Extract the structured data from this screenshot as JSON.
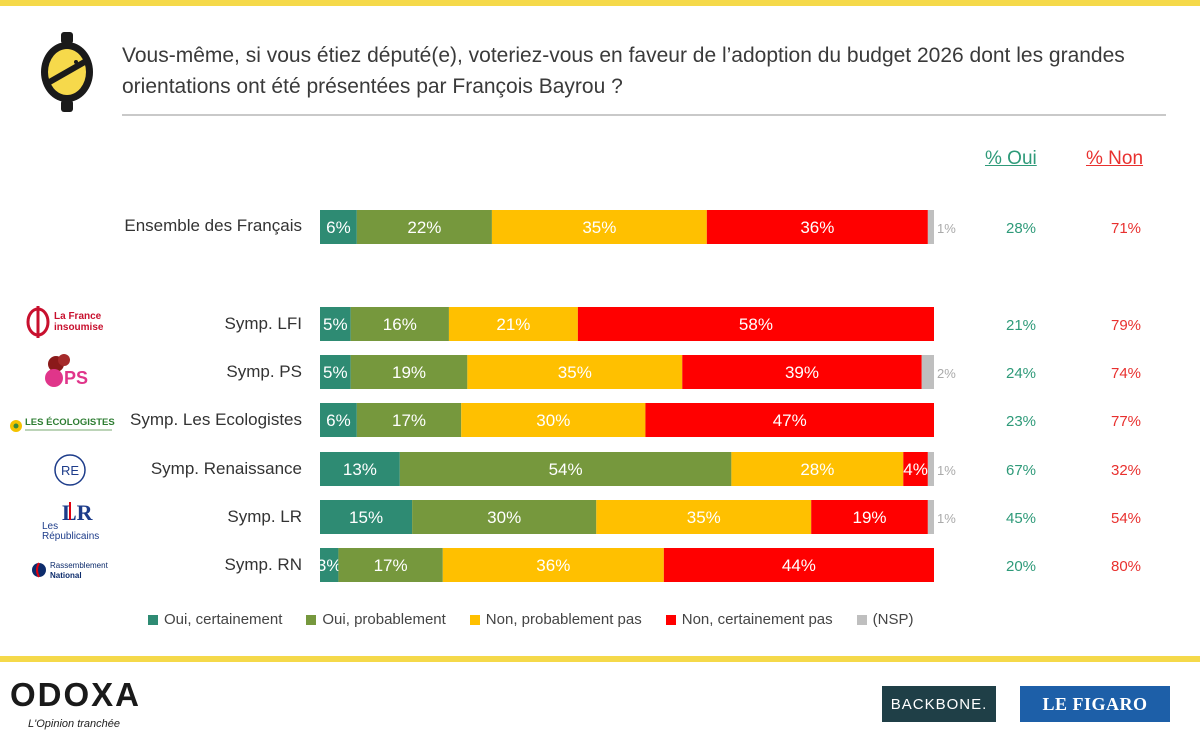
{
  "header": {
    "question": "Vous-même, si vous étiez député(e), voteriez-vous en faveur de l’adoption du budget 2026 dont les grandes orientations ont été présentées par François Bayrou ?"
  },
  "columns": {
    "oui_label": "% Oui",
    "non_label": "% Non"
  },
  "colors": {
    "oui_certainement": "#2e8b73",
    "oui_probablement": "#76983d",
    "non_probablement_pas": "#ffc000",
    "non_certainement_pas": "#ff0000",
    "nsp": "#bfbfbf",
    "brand_yellow": "#f5d94a"
  },
  "chart_data": {
    "type": "bar",
    "orientation": "horizontal",
    "stacked": true,
    "title": "Vous-même, si vous étiez député(e), voteriez-vous en faveur de l’adoption du budget 2026 dont les grandes orientations ont été présentées par François Bayrou ?",
    "categories": [
      "Ensemble des Français",
      "Symp. LFI",
      "Symp. PS",
      "Symp. Les Ecologistes",
      "Symp. Renaissance",
      "Symp. LR",
      "Symp. RN"
    ],
    "series": [
      {
        "name": "Oui, certainement",
        "values": [
          6,
          5,
          5,
          6,
          13,
          15,
          3
        ]
      },
      {
        "name": "Oui, probablement",
        "values": [
          22,
          16,
          19,
          17,
          54,
          30,
          17
        ]
      },
      {
        "name": "Non, probablement pas",
        "values": [
          35,
          21,
          35,
          30,
          28,
          35,
          36
        ]
      },
      {
        "name": "Non, certainement pas",
        "values": [
          36,
          58,
          39,
          47,
          4,
          19,
          44
        ]
      },
      {
        "name": "(NSP)",
        "values": [
          1,
          0,
          2,
          0,
          1,
          1,
          0
        ]
      }
    ],
    "pct_oui": [
      "28%",
      "21%",
      "24%",
      "23%",
      "67%",
      "45%",
      "20%"
    ],
    "pct_non": [
      "71%",
      "79%",
      "74%",
      "77%",
      "32%",
      "54%",
      "80%"
    ],
    "xlim": [
      0,
      100
    ]
  },
  "legend": {
    "items": [
      "Oui, certainement",
      "Oui, probablement",
      "Non, probablement pas",
      "Non, certainement pas",
      "(NSP)"
    ]
  },
  "party_logos": {
    "lfi_line1": "La France",
    "lfi_line2": "insoumise",
    "ps_text": "PS",
    "ecolo_text": "LES ÉCOLOGISTES",
    "re_text": "RE",
    "lr_line1": "Les",
    "lr_line2": "Républicains",
    "lr_mark": "LR",
    "rn_line1": "Rassemblement",
    "rn_line2": "National"
  },
  "footer": {
    "odoxa": "ODOXA",
    "tagline": "L'Opinion tranchée",
    "backbone": "BACKBONE.",
    "figaro": "LE FIGARO"
  }
}
